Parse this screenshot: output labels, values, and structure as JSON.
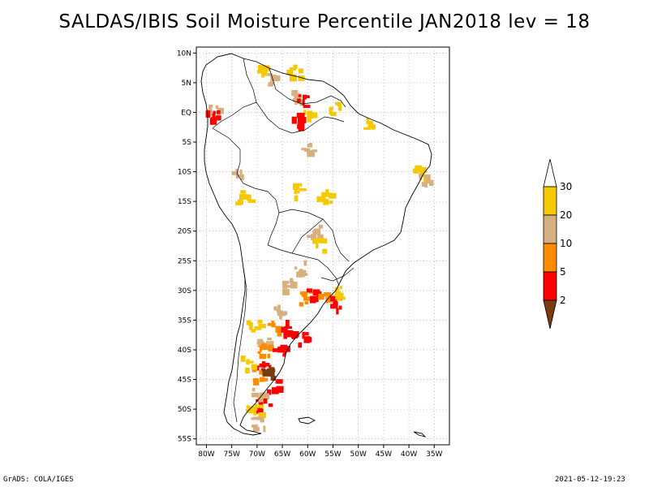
{
  "title": "SALDAS/IBIS Soil Moisture Percentile JAN2018 lev = 18",
  "footer": {
    "left": "GrADS: COLA/IGES",
    "right": "2021-05-12-19:23"
  },
  "map": {
    "region": "South America",
    "lon_range": [
      -82,
      -32
    ],
    "lat_range": [
      -56,
      11
    ],
    "x_tick_labels": [
      "80W",
      "75W",
      "70W",
      "65W",
      "60W",
      "55W",
      "50W",
      "45W",
      "40W",
      "35W"
    ],
    "x_tick_values": [
      -80,
      -75,
      -70,
      -65,
      -60,
      -55,
      -50,
      -45,
      -40,
      -35
    ],
    "y_tick_labels": [
      "10N",
      "5N",
      "EQ",
      "5S",
      "10S",
      "15S",
      "20S",
      "25S",
      "30S",
      "35S",
      "40S",
      "45S",
      "50S",
      "55S"
    ],
    "y_tick_values": [
      10,
      5,
      0,
      -5,
      -10,
      -15,
      -20,
      -25,
      -30,
      -35,
      -40,
      -45,
      -50,
      -55
    ],
    "grid": "dotted"
  },
  "colorbar": {
    "levels": [
      {
        "label": "30",
        "color": "#ffffff"
      },
      {
        "label": "20",
        "color": "#f5c800"
      },
      {
        "label": "10",
        "color": "#d8b080"
      },
      {
        "label": "5",
        "color": "#ff8c00"
      },
      {
        "label": "2",
        "color": "#ff0000"
      },
      {
        "label": "",
        "color": "#7a3c10"
      }
    ]
  },
  "chart_data": {
    "type": "heatmap",
    "title": "SALDAS/IBIS Soil Moisture Percentile JAN2018 lev = 18",
    "variable": "Soil Moisture Percentile",
    "period": "JAN2018",
    "level": "lev = 18",
    "color_thresholds": [
      2,
      5,
      10,
      20,
      30
    ],
    "colors": {
      "above_30": "#ffffff",
      "20_30": "#f5c800",
      "10_20": "#d8b080",
      "5_10": "#ff8c00",
      "2_5": "#ff0000",
      "below_2": "#7a3c10"
    },
    "xlim": [
      -82,
      -32
    ],
    "ylim": [
      -56,
      11
    ],
    "regions": [
      {
        "lon": -69,
        "lat": 7,
        "value": 25
      },
      {
        "lon": -67,
        "lat": 6,
        "value": 15
      },
      {
        "lon": -63,
        "lat": 7,
        "value": 25
      },
      {
        "lon": -62,
        "lat": 3,
        "value": 15
      },
      {
        "lon": -61,
        "lat": 2,
        "value": 4
      },
      {
        "lon": -60,
        "lat": 0,
        "value": 25
      },
      {
        "lon": -62,
        "lat": -1,
        "value": 3
      },
      {
        "lon": -55,
        "lat": 1,
        "value": 25
      },
      {
        "lon": -48,
        "lat": -2,
        "value": 25
      },
      {
        "lon": -79,
        "lat": 1,
        "value": 15
      },
      {
        "lon": -79,
        "lat": 0,
        "value": 4
      },
      {
        "lon": -60,
        "lat": -6,
        "value": 15
      },
      {
        "lon": -38,
        "lat": -10,
        "value": 25
      },
      {
        "lon": -37,
        "lat": -11,
        "value": 15
      },
      {
        "lon": -74,
        "lat": -10,
        "value": 15
      },
      {
        "lon": -73,
        "lat": -14,
        "value": 25
      },
      {
        "lon": -62,
        "lat": -13,
        "value": 25
      },
      {
        "lon": -57,
        "lat": -14,
        "value": 25
      },
      {
        "lon": -59,
        "lat": -20,
        "value": 15
      },
      {
        "lon": -58,
        "lat": -22,
        "value": 25
      },
      {
        "lon": -62,
        "lat": -26,
        "value": 15
      },
      {
        "lon": -64,
        "lat": -29,
        "value": 15
      },
      {
        "lon": -61,
        "lat": -31,
        "value": 8
      },
      {
        "lon": -59,
        "lat": -30,
        "value": 3
      },
      {
        "lon": -57,
        "lat": -31,
        "value": 8
      },
      {
        "lon": -55,
        "lat": -32,
        "value": 3
      },
      {
        "lon": -54,
        "lat": -30,
        "value": 25
      },
      {
        "lon": -66,
        "lat": -33,
        "value": 15
      },
      {
        "lon": -67,
        "lat": -36,
        "value": 8
      },
      {
        "lon": -64,
        "lat": -36,
        "value": 3
      },
      {
        "lon": -62,
        "lat": -38,
        "value": 3
      },
      {
        "lon": -69,
        "lat": -38,
        "value": 15
      },
      {
        "lon": -69,
        "lat": -40,
        "value": 8
      },
      {
        "lon": -66,
        "lat": -40,
        "value": 3
      },
      {
        "lon": -69,
        "lat": -43,
        "value": 3
      },
      {
        "lon": -70,
        "lat": -44,
        "value": 8
      },
      {
        "lon": -68,
        "lat": -44,
        "value": 1
      },
      {
        "lon": -67,
        "lat": -46,
        "value": 3
      },
      {
        "lon": -70,
        "lat": -47,
        "value": 15
      },
      {
        "lon": -69,
        "lat": -49,
        "value": 3
      },
      {
        "lon": -71,
        "lat": -50,
        "value": 25
      },
      {
        "lon": -70,
        "lat": -52,
        "value": 15
      },
      {
        "lon": -72,
        "lat": -42,
        "value": 25
      },
      {
        "lon": -71,
        "lat": -36,
        "value": 25
      }
    ]
  }
}
